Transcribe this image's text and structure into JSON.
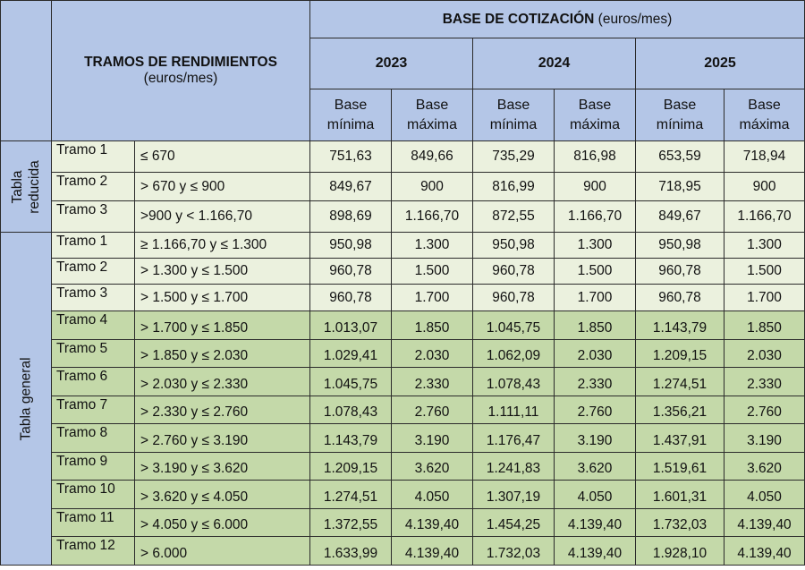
{
  "header": {
    "tramos_title": "TRAMOS DE RENDIMIENTOS",
    "tramos_unit": "(euros/mes)",
    "base_title": "BASE DE COTIZACIÓN",
    "base_unit": "(euros/mes)",
    "years": [
      "2023",
      "2024",
      "2025"
    ],
    "base_min_1": "Base",
    "base_min_2": "mínima",
    "base_max_1": "Base",
    "base_max_2": "máxima"
  },
  "groups": {
    "reducida_1": "Tabla",
    "reducida_2": "reducida",
    "general": "Tabla general"
  },
  "rows": [
    {
      "tramo": "Tramo 1",
      "range": "≤ 670",
      "v": [
        "751,63",
        "849,66",
        "735,29",
        "816,98",
        "653,59",
        "718,94"
      ]
    },
    {
      "tramo": "Tramo 2",
      "range": "> 670 y ≤ 900",
      "v": [
        "849,67",
        "900",
        "816,99",
        "900",
        "718,95",
        "900"
      ]
    },
    {
      "tramo": "Tramo 3",
      "range": ">900 y < 1.166,70",
      "v": [
        "898,69",
        "1.166,70",
        "872,55",
        "1.166,70",
        "849,67",
        "1.166,70"
      ]
    },
    {
      "tramo": "Tramo 1",
      "range": "≥  1.166,70 y ≤ 1.300",
      "v": [
        "950,98",
        "1.300",
        "950,98",
        "1.300",
        "950,98",
        "1.300"
      ]
    },
    {
      "tramo": "Tramo 2",
      "range": "> 1.300 y ≤ 1.500",
      "v": [
        "960,78",
        "1.500",
        "960,78",
        "1.500",
        "960,78",
        "1.500"
      ]
    },
    {
      "tramo": "Tramo 3",
      "range": "> 1.500 y ≤ 1.700",
      "v": [
        "960,78",
        "1.700",
        "960,78",
        "1.700",
        "960,78",
        "1.700"
      ]
    },
    {
      "tramo": "Tramo 4",
      "range": "> 1.700 y ≤ 1.850",
      "v": [
        "1.013,07",
        "1.850",
        "1.045,75",
        "1.850",
        "1.143,79",
        "1.850"
      ]
    },
    {
      "tramo": "Tramo 5",
      "range": "> 1.850 y ≤ 2.030",
      "v": [
        "1.029,41",
        "2.030",
        "1.062,09",
        "2.030",
        "1.209,15",
        "2.030"
      ]
    },
    {
      "tramo": "Tramo 6",
      "range": "> 2.030 y ≤ 2.330",
      "v": [
        "1.045,75",
        "2.330",
        "1.078,43",
        "2.330",
        "1.274,51",
        "2.330"
      ]
    },
    {
      "tramo": "Tramo 7",
      "range": "> 2.330 y ≤ 2.760",
      "v": [
        "1.078,43",
        "2.760",
        "1.111,11",
        "2.760",
        "1.356,21",
        "2.760"
      ]
    },
    {
      "tramo": "Tramo 8",
      "range": "> 2.760 y ≤ 3.190",
      "v": [
        "1.143,79",
        "3.190",
        "1.176,47",
        "3.190",
        "1.437,91",
        "3.190"
      ]
    },
    {
      "tramo": "Tramo 9",
      "range": "> 3.190 y ≤ 3.620",
      "v": [
        "1.209,15",
        "3.620",
        "1.241,83",
        "3.620",
        "1.519,61",
        "3.620"
      ]
    },
    {
      "tramo": "Tramo 10",
      "range": "> 3.620 y ≤ 4.050",
      "v": [
        "1.274,51",
        "4.050",
        "1.307,19",
        "4.050",
        "1.601,31",
        "4.050"
      ]
    },
    {
      "tramo": "Tramo 11",
      "range": "> 4.050 y ≤ 6.000",
      "v": [
        "1.372,55",
        "4.139,40",
        "1.454,25",
        "4.139,40",
        "1.732,03",
        "4.139,40"
      ]
    },
    {
      "tramo": "Tramo 12",
      "range": "> 6.000",
      "v": [
        "1.633,99",
        "4.139,40",
        "1.732,03",
        "4.139,40",
        "1.928,10",
        "4.139,40"
      ]
    }
  ],
  "colors": {
    "header": "#b4c6e7",
    "light_row": "#ebf1de",
    "dark_row": "#c4d9a9",
    "border": "#2b2b2b"
  }
}
